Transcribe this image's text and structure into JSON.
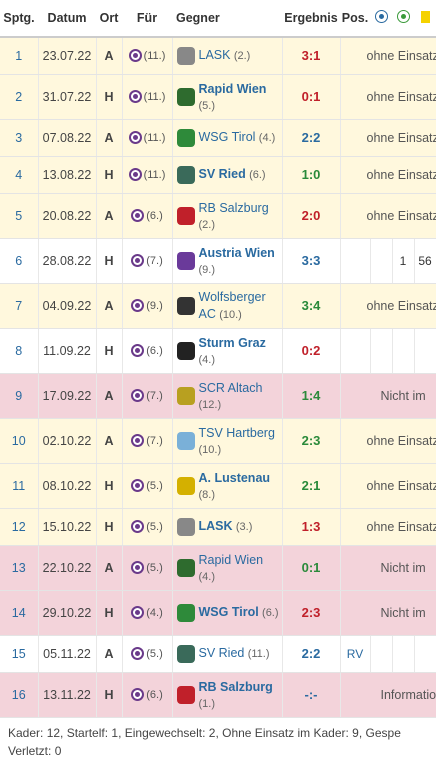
{
  "headers": {
    "matchday": "Sptg.",
    "date": "Datum",
    "venue": "Ort",
    "for": "Für",
    "opponent": "Gegner",
    "result": "Ergebnis",
    "position": "Pos."
  },
  "colors": {
    "yellow_row": "#fff8dd",
    "pink_row": "#f3d3da",
    "link": "#2a6aa0",
    "win": "#2a8a3a",
    "loss": "#c0202a"
  },
  "icons": {
    "goals": "ball-icon",
    "assists": "assist-ball-icon",
    "yellow_card": "yellow-card-icon"
  },
  "matches": [
    {
      "md": "1",
      "date": "23.07.22",
      "venue": "A",
      "for_rank": "(11.)",
      "opp": "LASK",
      "opp_rank": "(2.)",
      "result": "3:1",
      "res_class": "loss",
      "row": "yellow",
      "status": "ohne Einsatz",
      "bold": false,
      "tall": false,
      "logo": "#888"
    },
    {
      "md": "2",
      "date": "31.07.22",
      "venue": "H",
      "for_rank": "(11.)",
      "opp": "Rapid Wien",
      "opp_rank": "(5.)",
      "result": "0:1",
      "res_class": "loss",
      "row": "yellow",
      "status": "ohne Einsatz",
      "bold": true,
      "tall": true,
      "logo": "#2e6b2e"
    },
    {
      "md": "3",
      "date": "07.08.22",
      "venue": "A",
      "for_rank": "(11.)",
      "opp": "WSG Tirol",
      "opp_rank": "(4.)",
      "result": "2:2",
      "res_class": "draw",
      "row": "yellow",
      "status": "ohne Einsatz",
      "bold": false,
      "tall": false,
      "logo": "#2e8a3a"
    },
    {
      "md": "4",
      "date": "13.08.22",
      "venue": "H",
      "for_rank": "(11.)",
      "opp": "SV Ried",
      "opp_rank": "(6.)",
      "result": "1:0",
      "res_class": "win",
      "row": "yellow",
      "status": "ohne Einsatz",
      "bold": true,
      "tall": false,
      "logo": "#3a6a5a"
    },
    {
      "md": "5",
      "date": "20.08.22",
      "venue": "A",
      "for_rank": "(6.)",
      "opp": "RB Salzburg",
      "opp_rank": "(2.)",
      "result": "2:0",
      "res_class": "loss",
      "row": "yellow",
      "status": "ohne Einsatz",
      "bold": false,
      "tall": true,
      "logo": "#c0202a"
    },
    {
      "md": "6",
      "date": "28.08.22",
      "venue": "H",
      "for_rank": "(7.)",
      "opp": "Austria Wien",
      "opp_rank": "(9.)",
      "result": "3:3",
      "res_class": "draw",
      "row": "white",
      "status": "",
      "bold": true,
      "tall": true,
      "logo": "#6a3a9a",
      "extra1": "1",
      "extra2": "56"
    },
    {
      "md": "7",
      "date": "04.09.22",
      "venue": "A",
      "for_rank": "(9.)",
      "opp": "Wolfsberger AC",
      "opp_rank": "(10.)",
      "result": "3:4",
      "res_class": "win",
      "row": "yellow",
      "status": "ohne Einsatz",
      "bold": false,
      "tall": true,
      "logo": "#333"
    },
    {
      "md": "8",
      "date": "11.09.22",
      "venue": "H",
      "for_rank": "(6.)",
      "opp": "Sturm Graz",
      "opp_rank": "(4.)",
      "result": "0:2",
      "res_class": "loss",
      "row": "white",
      "status": "",
      "bold": true,
      "tall": true,
      "logo": "#222"
    },
    {
      "md": "9",
      "date": "17.09.22",
      "venue": "A",
      "for_rank": "(7.)",
      "opp": "SCR Altach",
      "opp_rank": "(12.)",
      "result": "1:4",
      "res_class": "win",
      "row": "pink",
      "status": "Nicht im",
      "bold": false,
      "tall": true,
      "logo": "#b8a020"
    },
    {
      "md": "10",
      "date": "02.10.22",
      "venue": "A",
      "for_rank": "(7.)",
      "opp": "TSV Hartberg",
      "opp_rank": "(10.)",
      "result": "2:3",
      "res_class": "win",
      "row": "yellow",
      "status": "ohne Einsatz",
      "bold": false,
      "tall": true,
      "logo": "#7ab0d8"
    },
    {
      "md": "11",
      "date": "08.10.22",
      "venue": "H",
      "for_rank": "(5.)",
      "opp": "A. Lustenau",
      "opp_rank": "(8.)",
      "result": "2:1",
      "res_class": "win",
      "row": "yellow",
      "status": "ohne Einsatz",
      "bold": true,
      "tall": true,
      "logo": "#d4b000"
    },
    {
      "md": "12",
      "date": "15.10.22",
      "venue": "H",
      "for_rank": "(5.)",
      "opp": "LASK",
      "opp_rank": "(3.)",
      "result": "1:3",
      "res_class": "loss",
      "row": "yellow",
      "status": "ohne Einsatz",
      "bold": true,
      "tall": false,
      "logo": "#888"
    },
    {
      "md": "13",
      "date": "22.10.22",
      "venue": "A",
      "for_rank": "(5.)",
      "opp": "Rapid Wien",
      "opp_rank": "(4.)",
      "result": "0:1",
      "res_class": "win",
      "row": "pink",
      "status": "Nicht im",
      "bold": false,
      "tall": true,
      "logo": "#2e6b2e"
    },
    {
      "md": "14",
      "date": "29.10.22",
      "venue": "H",
      "for_rank": "(4.)",
      "opp": "WSG Tirol",
      "opp_rank": "(6.)",
      "result": "2:3",
      "res_class": "loss",
      "row": "pink",
      "status": "Nicht im",
      "bold": true,
      "tall": true,
      "logo": "#2e8a3a"
    },
    {
      "md": "15",
      "date": "05.11.22",
      "venue": "A",
      "for_rank": "(5.)",
      "opp": "SV Ried",
      "opp_rank": "(11.)",
      "result": "2:2",
      "res_class": "draw",
      "row": "white",
      "status": "",
      "bold": false,
      "tall": false,
      "logo": "#3a6a5a",
      "pos": "RV"
    },
    {
      "md": "16",
      "date": "13.11.22",
      "venue": "H",
      "for_rank": "(6.)",
      "opp": "RB Salzburg",
      "opp_rank": "(1.)",
      "result": "-:-",
      "res_class": "draw",
      "row": "pink",
      "status": "Informationen verfü",
      "bold": true,
      "tall": true,
      "logo": "#c0202a"
    }
  ],
  "footer": {
    "line1": "Kader: 12, Startelf: 1, Eingewechselt: 2, Ohne Einsatz im Kader: 9, Gespe",
    "line2": "Verletzt: 0"
  }
}
